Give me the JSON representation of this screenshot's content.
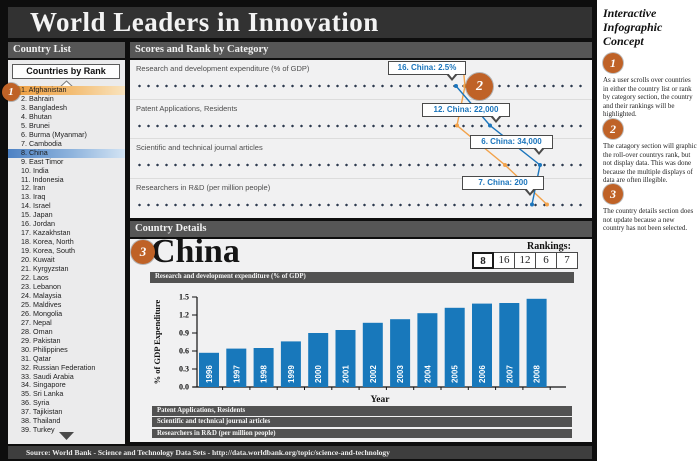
{
  "title": "World Leaders in Innovation",
  "footer": {
    "source": "Source: World Bank - Science and Technology Data Sets - http://data.worldbank.org/topic/science-and-technology"
  },
  "country_list": {
    "header": "Country List",
    "box_title": "Countries by Rank",
    "countries": [
      {
        "rank": 1,
        "name": "Afghanistan",
        "highlight": "orange"
      },
      {
        "rank": 2,
        "name": "Bahrain",
        "highlight": null
      },
      {
        "rank": 3,
        "name": "Bangladesh",
        "highlight": null
      },
      {
        "rank": 4,
        "name": "Bhutan",
        "highlight": null
      },
      {
        "rank": 5,
        "name": "Brunei",
        "highlight": null
      },
      {
        "rank": 6,
        "name": "Burma (Myanmar)",
        "highlight": null
      },
      {
        "rank": 7,
        "name": "Cambodia",
        "highlight": null
      },
      {
        "rank": 8,
        "name": "China",
        "highlight": "blue"
      },
      {
        "rank": 9,
        "name": "East Timor",
        "highlight": null
      },
      {
        "rank": 10,
        "name": "India",
        "highlight": null
      },
      {
        "rank": 11,
        "name": "Indonesia",
        "highlight": null
      },
      {
        "rank": 12,
        "name": "Iran",
        "highlight": null
      },
      {
        "rank": 13,
        "name": "Iraq",
        "highlight": null
      },
      {
        "rank": 14,
        "name": "Israel",
        "highlight": null
      },
      {
        "rank": 15,
        "name": "Japan",
        "highlight": null
      },
      {
        "rank": 16,
        "name": "Jordan",
        "highlight": null
      },
      {
        "rank": 17,
        "name": "Kazakhstan",
        "highlight": null
      },
      {
        "rank": 18,
        "name": "Korea, North",
        "highlight": null
      },
      {
        "rank": 19,
        "name": "Korea, South",
        "highlight": null
      },
      {
        "rank": 20,
        "name": "Kuwait",
        "highlight": null
      },
      {
        "rank": 21,
        "name": "Kyrgyzstan",
        "highlight": null
      },
      {
        "rank": 22,
        "name": "Laos",
        "highlight": null
      },
      {
        "rank": 23,
        "name": "Lebanon",
        "highlight": null
      },
      {
        "rank": 24,
        "name": "Malaysia",
        "highlight": null
      },
      {
        "rank": 25,
        "name": "Maldives",
        "highlight": null
      },
      {
        "rank": 26,
        "name": "Mongolia",
        "highlight": null
      },
      {
        "rank": 27,
        "name": "Nepal",
        "highlight": null
      },
      {
        "rank": 28,
        "name": "Oman",
        "highlight": null
      },
      {
        "rank": 29,
        "name": "Pakistan",
        "highlight": null
      },
      {
        "rank": 30,
        "name": "Philippines",
        "highlight": null
      },
      {
        "rank": 31,
        "name": "Qatar",
        "highlight": null
      },
      {
        "rank": 32,
        "name": "Russian Federation",
        "highlight": null
      },
      {
        "rank": 33,
        "name": "Saudi Arabia",
        "highlight": null
      },
      {
        "rank": 34,
        "name": "Singapore",
        "highlight": null
      },
      {
        "rank": 35,
        "name": "Sri Lanka",
        "highlight": null
      },
      {
        "rank": 36,
        "name": "Syria",
        "highlight": null
      },
      {
        "rank": 37,
        "name": "Tajikistan",
        "highlight": null
      },
      {
        "rank": 38,
        "name": "Thailand",
        "highlight": null
      },
      {
        "rank": 39,
        "name": "Turkey",
        "highlight": null
      }
    ]
  },
  "scores_panel": {
    "header": "Scores and Rank by Category",
    "categories": [
      "Research and development expenditure (% of GDP)",
      "Patent Applications, Residents",
      "Scientific and technical journal articles",
      "Researchers in R&D (per million people)"
    ],
    "callouts": [
      "16. China: 2.5%",
      "12. China: 22,000",
      "6. China: 34,000",
      "7. China: 200"
    ],
    "callout_text_color": "#1b75bc",
    "dot_color": "#2c3a4e",
    "highlight_line_colors": {
      "selected": "#1b75bc",
      "rollover": "#f2a24a"
    }
  },
  "details": {
    "header": "Country Details",
    "country": "China",
    "rankings_label": "Rankings:",
    "rankings": [
      "8",
      "16",
      "12",
      "6",
      "7"
    ],
    "open_section": "Research and development expenditure (% of GDP)",
    "collapsed_sections": [
      "Patent Applications, Residents",
      "Scientific and technical journal articles",
      "Researchers in R&D (per million people)"
    ]
  },
  "chart_data": {
    "type": "bar",
    "title": "Research and development expenditure (% of GDP)",
    "categories": [
      "1996",
      "1997",
      "1998",
      "1999",
      "2000",
      "2001",
      "2002",
      "2003",
      "2004",
      "2005",
      "2006",
      "2007",
      "2008"
    ],
    "values": [
      0.57,
      0.64,
      0.65,
      0.76,
      0.9,
      0.95,
      1.07,
      1.13,
      1.23,
      1.32,
      1.39,
      1.4,
      1.47
    ],
    "xlabel": "Year",
    "ylabel": "% of GDP Expenditure",
    "ylim": [
      0,
      1.5
    ],
    "yticks": [
      "0.0",
      "0.3",
      "0.6",
      "0.9",
      "1.2",
      "1.5"
    ],
    "grid": false,
    "legend": null,
    "bar_color": "#1878bb"
  },
  "annotations": {
    "title": "Interactive Infographic Concept",
    "notes": [
      {
        "num": "1",
        "text": "As a user scrolls over countries in either the country list or rank by category section, the country and their rankings will be highlighted."
      },
      {
        "num": "2",
        "text": "The catagory section will graphic the roll-over countrys rank, but not display data. This was done because the multiple displays of data are often illegible."
      },
      {
        "num": "3",
        "text": "The country details section does not update because a new country has not been selected."
      }
    ]
  },
  "colors": {
    "accent_orange": "#bf6227",
    "selected_blue": "#1b75bc",
    "panel_bg": "#f1f1f2",
    "header_bar": "#565656",
    "background": "#0e0e0e"
  }
}
